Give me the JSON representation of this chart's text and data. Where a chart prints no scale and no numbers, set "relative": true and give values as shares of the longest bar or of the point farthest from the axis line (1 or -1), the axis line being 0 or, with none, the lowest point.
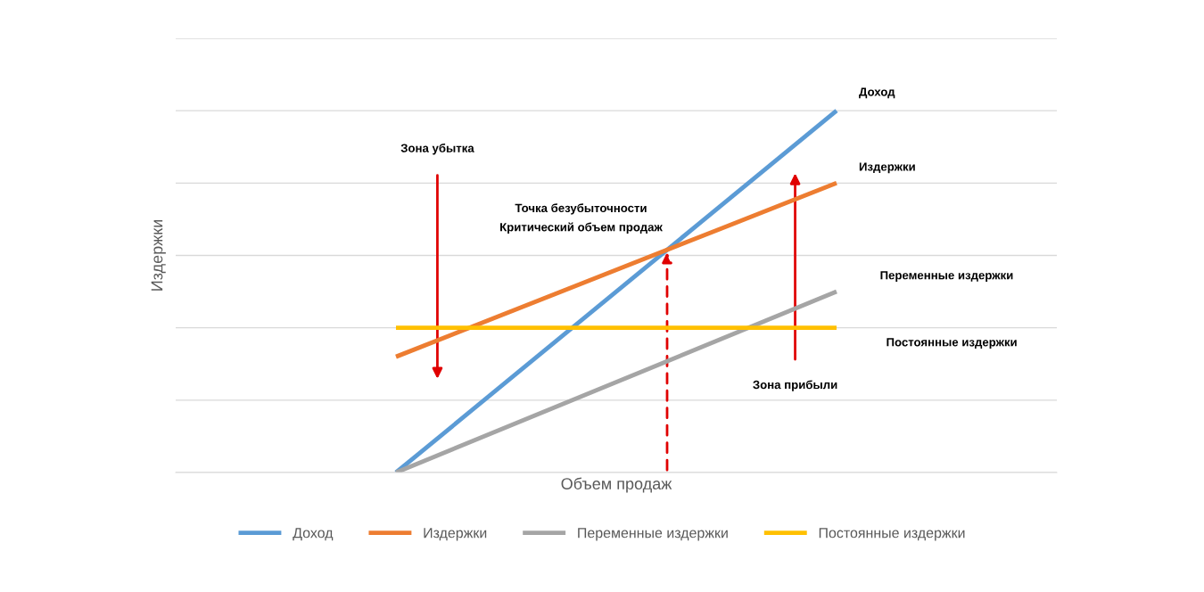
{
  "chart_data": {
    "type": "line",
    "relative": true,
    "xlabel": "Объем продаж",
    "ylabel": "Издержки",
    "categories": [
      null,
      null
    ],
    "series": [
      {
        "name": "Доход",
        "color": "#5b9bd5",
        "values": [
          0,
          1
        ]
      },
      {
        "name": "Издержки",
        "color": "#ed7d31",
        "values": [
          0.32,
          0.8
        ]
      },
      {
        "name": "Переменные издержки",
        "color": "#a5a5a5",
        "values": [
          0,
          0.5
        ]
      },
      {
        "name": "Постоянные издержки",
        "color": "#ffc000",
        "values": [
          0.4,
          0.4
        ]
      }
    ],
    "annotations": [
      "Зона убытка",
      "Точка безубыточности\nКритический объем продаж",
      "Зона прибыли"
    ],
    "grid": "y",
    "legend": "bottom",
    "marker": "none",
    "line_style": "solid"
  }
}
